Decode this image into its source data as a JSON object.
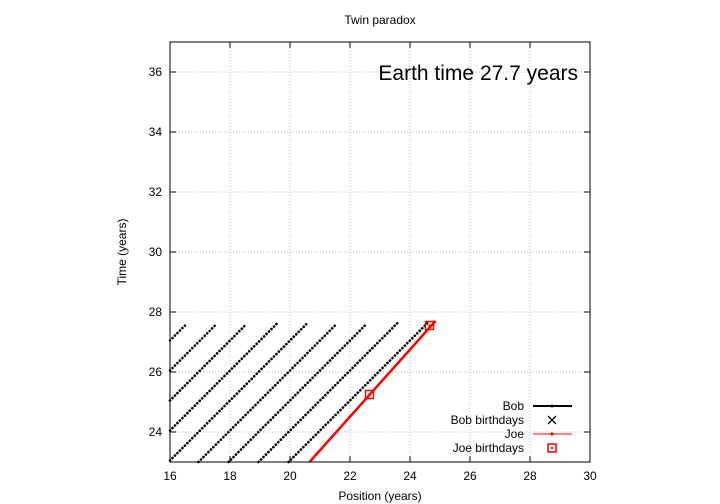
{
  "chart_data": {
    "type": "line",
    "title": "Twin paradox",
    "xlabel": "Position (years)",
    "ylabel": "Time (years)",
    "xlim": [
      16,
      30
    ],
    "ylim": [
      23,
      37
    ],
    "xticks": [
      "16",
      "18",
      "20",
      "22",
      "24",
      "26",
      "28",
      "30"
    ],
    "yticks": [
      "24",
      "26",
      "28",
      "30",
      "32",
      "34",
      "36"
    ],
    "grid": true,
    "legend_position": "bottom-right",
    "annotation": "Earth time 27.7 years",
    "colors": {
      "bob": "#000000",
      "joe": "#ff0000"
    },
    "series": [
      {
        "name": "Bob",
        "style": "dotted-lines",
        "segments": [
          {
            "x": [
              16.0,
              16.55
            ],
            "y": [
              27.05,
              27.6
            ]
          },
          {
            "x": [
              16.0,
              17.55
            ],
            "y": [
              26.05,
              27.6
            ]
          },
          {
            "x": [
              16.0,
              18.55
            ],
            "y": [
              25.05,
              27.6
            ]
          },
          {
            "x": [
              16.0,
              19.55
            ],
            "y": [
              24.05,
              27.6
            ]
          },
          {
            "x": [
              16.0,
              20.55
            ],
            "y": [
              23.05,
              27.6
            ]
          },
          {
            "x": [
              16.95,
              21.55
            ],
            "y": [
              23.0,
              27.6
            ]
          },
          {
            "x": [
              17.95,
              22.55
            ],
            "y": [
              23.0,
              27.6
            ]
          },
          {
            "x": [
              18.95,
              23.65
            ],
            "y": [
              23.0,
              27.7
            ]
          },
          {
            "x": [
              19.95,
              24.6
            ],
            "y": [
              23.0,
              27.65
            ]
          }
        ]
      },
      {
        "name": "Bob birthdays",
        "x": [],
        "y": []
      },
      {
        "name": "Joe",
        "x": [
          20.65,
          24.85
        ],
        "y": [
          23.0,
          27.7
        ]
      },
      {
        "name": "Joe birthdays",
        "x": [
          22.65,
          24.65
        ],
        "y": [
          25.25,
          27.55
        ]
      }
    ]
  }
}
